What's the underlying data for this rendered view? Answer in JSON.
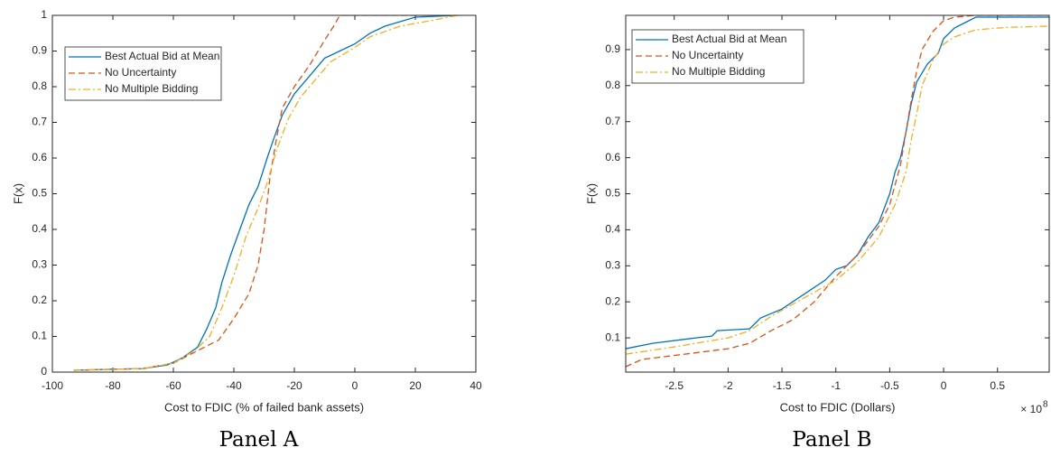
{
  "chart_data": [
    {
      "type": "line",
      "caption": "Panel A",
      "x_label": "Cost to FDIC (% of failed bank assets)",
      "y_label": "F(x)",
      "xlim": [
        -100,
        40
      ],
      "ylim": [
        0,
        1
      ],
      "xticks": [
        -100,
        -80,
        -60,
        -40,
        -20,
        0,
        20,
        40
      ],
      "yticks": [
        0,
        0.1,
        0.2,
        0.3,
        0.4,
        0.5,
        0.6,
        0.7,
        0.8,
        0.9,
        1
      ],
      "legend": "upper left",
      "series": [
        {
          "name": "Best Actual Bid at Mean",
          "color": "#0072bd",
          "style": "solid",
          "x": [
            -93,
            -80,
            -70,
            -62,
            -57,
            -52,
            -49,
            -46,
            -44,
            -41,
            -38,
            -35,
            -32,
            -29,
            -27,
            -24,
            -20,
            -15,
            -10,
            -5,
            0,
            5,
            10,
            20,
            34
          ],
          "values": [
            0.005,
            0.008,
            0.01,
            0.02,
            0.04,
            0.07,
            0.12,
            0.18,
            0.25,
            0.33,
            0.4,
            0.47,
            0.52,
            0.6,
            0.65,
            0.72,
            0.78,
            0.83,
            0.88,
            0.9,
            0.92,
            0.95,
            0.97,
            0.995,
            1
          ]
        },
        {
          "name": "No Uncertainty",
          "color": "#d95319",
          "style": "dashed",
          "x": [
            -93,
            -70,
            -60,
            -52,
            -45,
            -40,
            -35,
            -32,
            -30,
            -28,
            -26,
            -24,
            -20,
            -15,
            -10,
            -7,
            -5,
            34
          ],
          "values": [
            0.005,
            0.01,
            0.025,
            0.06,
            0.09,
            0.15,
            0.22,
            0.3,
            0.4,
            0.55,
            0.65,
            0.74,
            0.8,
            0.86,
            0.93,
            0.97,
            1,
            1
          ]
        },
        {
          "name": "No Multiple Bidding",
          "color": "#edb120",
          "style": "dashdot",
          "x": [
            -93,
            -70,
            -60,
            -53,
            -48,
            -44,
            -40,
            -36,
            -32,
            -29,
            -26,
            -22,
            -18,
            -13,
            -8,
            0,
            5,
            15,
            25,
            34
          ],
          "values": [
            0.005,
            0.01,
            0.025,
            0.06,
            0.1,
            0.18,
            0.27,
            0.38,
            0.46,
            0.53,
            0.62,
            0.71,
            0.77,
            0.82,
            0.87,
            0.91,
            0.94,
            0.97,
            0.985,
            1
          ]
        }
      ]
    },
    {
      "type": "line",
      "caption": "Panel B",
      "x_label": "Cost to FDIC (Dollars)",
      "y_label": "F(x)",
      "x_multiplier": "× 10",
      "x_multiplier_exponent": "8",
      "xlim": [
        -2.95,
        0.98
      ],
      "ylim": [
        0.005,
        0.995
      ],
      "xticks": [
        -2.5,
        -2,
        -1.5,
        -1,
        -0.5,
        0,
        0.5
      ],
      "yticks": [
        0.1,
        0.2,
        0.3,
        0.4,
        0.5,
        0.6,
        0.7,
        0.8,
        0.9
      ],
      "legend": "upper left",
      "series": [
        {
          "name": "Best Actual Bid at Mean",
          "color": "#0072bd",
          "style": "solid",
          "x": [
            -2.95,
            -2.7,
            -2.3,
            -2.15,
            -2.1,
            -1.8,
            -1.7,
            -1.5,
            -1.3,
            -1.1,
            -1.0,
            -0.9,
            -0.8,
            -0.7,
            -0.6,
            -0.5,
            -0.45,
            -0.4,
            -0.35,
            -0.3,
            -0.25,
            -0.15,
            -0.05,
            0,
            0.1,
            0.2,
            0.3,
            0.98
          ],
          "values": [
            0.07,
            0.085,
            0.1,
            0.105,
            0.12,
            0.125,
            0.155,
            0.18,
            0.22,
            0.26,
            0.29,
            0.3,
            0.33,
            0.38,
            0.42,
            0.5,
            0.56,
            0.6,
            0.67,
            0.75,
            0.81,
            0.86,
            0.89,
            0.93,
            0.96,
            0.975,
            0.99,
            0.99
          ]
        },
        {
          "name": "No Uncertainty",
          "color": "#d95319",
          "style": "dashed",
          "x": [
            -2.95,
            -2.8,
            -2.4,
            -2,
            -1.8,
            -1.6,
            -1.4,
            -1.2,
            -1.0,
            -0.8,
            -0.6,
            -0.5,
            -0.4,
            -0.35,
            -0.3,
            -0.25,
            -0.2,
            -0.1,
            0,
            0.1,
            0.3,
            0.98
          ],
          "values": [
            0.02,
            0.04,
            0.055,
            0.07,
            0.085,
            0.12,
            0.15,
            0.2,
            0.27,
            0.33,
            0.41,
            0.47,
            0.58,
            0.67,
            0.76,
            0.84,
            0.9,
            0.95,
            0.98,
            0.99,
            0.995,
            0.995
          ]
        },
        {
          "name": "No Multiple Bidding",
          "color": "#edb120",
          "style": "dashdot",
          "x": [
            -2.95,
            -2.5,
            -2,
            -1.8,
            -1.6,
            -1.3,
            -1.0,
            -0.8,
            -0.6,
            -0.45,
            -0.35,
            -0.3,
            -0.25,
            -0.2,
            -0.1,
            0,
            0.1,
            0.3,
            0.6,
            0.98
          ],
          "values": [
            0.055,
            0.075,
            0.1,
            0.12,
            0.16,
            0.21,
            0.26,
            0.31,
            0.38,
            0.47,
            0.56,
            0.65,
            0.72,
            0.8,
            0.87,
            0.915,
            0.935,
            0.955,
            0.962,
            0.965
          ]
        }
      ]
    }
  ]
}
